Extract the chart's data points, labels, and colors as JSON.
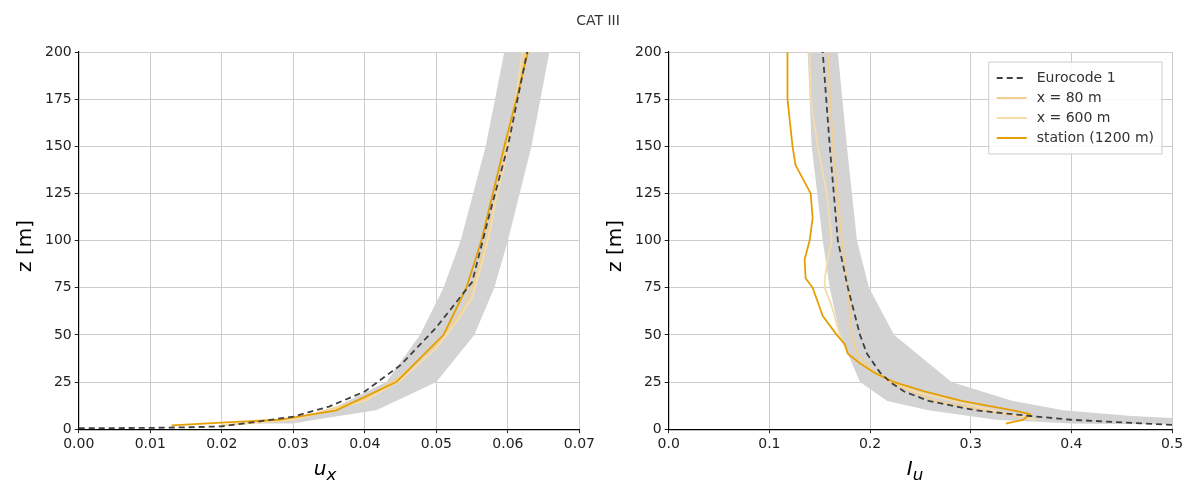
{
  "chart_data": [
    {
      "type": "line",
      "title": "CAT III",
      "xlabel": "u$_{x}$",
      "ylabel": "z [m]",
      "xlim": [
        0,
        0.07
      ],
      "ylim": [
        0,
        200
      ],
      "xticks": [
        {
          "value": 0,
          "label": "0.00"
        },
        {
          "value": 0.01,
          "label": "0.01"
        },
        {
          "value": 0.02,
          "label": "0.02"
        },
        {
          "value": 0.03,
          "label": "0.03"
        },
        {
          "value": 0.04,
          "label": "0.04"
        },
        {
          "value": 0.05,
          "label": "0.05"
        },
        {
          "value": 0.06,
          "label": "0.06"
        },
        {
          "value": 0.07,
          "label": "0.07"
        }
      ],
      "yticks": [
        0,
        25,
        50,
        75,
        100,
        125,
        150,
        175,
        200
      ],
      "grid": true,
      "legend": false,
      "marker": "none",
      "series": [
        {
          "type": "area",
          "color": "#d3d3d3",
          "x": [
            0.025,
            0.028,
            0.035,
            0.043,
            0.0477,
            0.051,
            0.0534,
            0.0569,
            0.0595,
            0.0658,
            0.0633,
            0.06,
            0.0581,
            0.0553,
            0.05,
            0.0416,
            0.033,
            0.03
          ],
          "values": [
            3,
            5,
            10,
            25,
            50,
            75,
            100,
            150,
            200,
            200,
            150,
            100,
            75,
            50,
            25,
            10,
            5,
            3
          ]
        },
        {
          "color": "#404040",
          "line_style": "dashed",
          "x": [
            0,
            0.01,
            0.015,
            0.02,
            0.025,
            0.03,
            0.035,
            0.04,
            0.045,
            0.05,
            0.055,
            0.0575,
            0.06,
            0.0627
          ],
          "values": [
            0.5,
            0.7,
            1,
            1.5,
            4,
            6.7,
            12,
            20,
            34,
            54,
            78,
            115,
            150,
            200
          ]
        },
        {
          "color": "#f2cf8f",
          "x": [
            0.02,
            0.03,
            0.04,
            0.045,
            0.05,
            0.054,
            0.0555,
            0.057,
            0.0585,
            0.0598,
            0.061,
            0.0625
          ],
          "values": [
            2,
            5,
            16,
            28,
            45,
            65,
            80,
            100,
            125,
            150,
            175,
            200
          ]
        },
        {
          "color": "#f5dca9",
          "x": [
            0.02,
            0.03,
            0.04,
            0.045,
            0.05,
            0.053,
            0.055,
            0.0565,
            0.0575,
            0.0585,
            0.0595,
            0.0605,
            0.0615,
            0.062
          ],
          "values": [
            2,
            5,
            15,
            26,
            43,
            58,
            70,
            90,
            105,
            125,
            140,
            160,
            185,
            200
          ]
        },
        {
          "color": "#e69f00",
          "x": [
            0.013,
            0.02,
            0.028,
            0.036,
            0.0444,
            0.051,
            0.0542,
            0.0563,
            0.0579,
            0.0595,
            0.0612,
            0.0628
          ],
          "values": [
            2,
            3.5,
            5,
            10,
            25,
            50,
            75,
            100,
            125,
            150,
            175,
            200
          ]
        }
      ]
    },
    {
      "type": "line",
      "xlabel": "I$_{u}$",
      "ylabel": "z [m]",
      "xlim": [
        0,
        0.5
      ],
      "ylim": [
        0,
        200
      ],
      "xticks": [
        {
          "value": 0,
          "label": "0.0"
        },
        {
          "value": 0.1,
          "label": "0.1"
        },
        {
          "value": 0.2,
          "label": "0.2"
        },
        {
          "value": 0.3,
          "label": "0.3"
        },
        {
          "value": 0.4,
          "label": "0.4"
        },
        {
          "value": 0.5,
          "label": "0.5"
        }
      ],
      "yticks": [
        0,
        25,
        50,
        75,
        100,
        125,
        150,
        175,
        200
      ],
      "grid": true,
      "legend": "top right",
      "marker": "none",
      "series": [
        {
          "type": "area",
          "color": "#d3d3d3",
          "x": [
            0.5,
            0.4,
            0.325,
            0.258,
            0.217,
            0.19,
            0.17,
            0.16,
            0.153,
            0.142,
            0.138,
            0.168,
            0.177,
            0.187,
            0.199,
            0.224,
            0.281,
            0.342,
            0.392,
            0.46,
            0.5
          ],
          "values": [
            2.5,
            3,
            5,
            10,
            15,
            25,
            50,
            75,
            100,
            150,
            200,
            200,
            150,
            100,
            75,
            50,
            25,
            15,
            10,
            7,
            6
          ]
        },
        {
          "name": "Eurocode 1",
          "color": "#404040",
          "line_style": "dashed",
          "x": [
            0.5,
            0.4,
            0.359,
            0.305,
            0.258,
            0.234,
            0.22,
            0.21,
            0.197,
            0.19,
            0.178,
            0.168,
            0.16,
            0.153
          ],
          "values": [
            2.3,
            5,
            7,
            10,
            15,
            20,
            25,
            30,
            40,
            50,
            75,
            100,
            150,
            200
          ]
        },
        {
          "name": "x = 80 m",
          "color": "#f2cf8f",
          "x": [
            0.365,
            0.315,
            0.264,
            0.22,
            0.204,
            0.187,
            0.182,
            0.178,
            0.172,
            0.163,
            0.158
          ],
          "values": [
            5,
            10,
            15,
            25,
            30,
            40,
            50,
            75,
            100,
            150,
            200
          ]
        },
        {
          "name": "x = 600 m",
          "color": "#f5dca9",
          "x": [
            0.365,
            0.322,
            0.244,
            0.204,
            0.178,
            0.17,
            0.162,
            0.155,
            0.155,
            0.158,
            0.162,
            0.157,
            0.148,
            0.141,
            0.14
          ],
          "values": [
            5,
            10,
            20,
            30,
            40,
            50,
            65,
            75,
            80,
            90,
            100,
            125,
            150,
            175,
            200
          ]
        },
        {
          "name": "station (1200 m)",
          "color": "#e69f00",
          "x": [
            0.335,
            0.352,
            0.359,
            0.342,
            0.291,
            0.254,
            0.224,
            0.204,
            0.19,
            0.178,
            0.175,
            0.167,
            0.153,
            0.143,
            0.136,
            0.135,
            0.14,
            0.143,
            0.141,
            0.126,
            0.123,
            0.118,
            0.118
          ],
          "values": [
            3,
            5,
            8,
            10,
            15,
            20,
            25,
            30,
            35,
            40,
            45,
            50,
            60,
            75,
            80,
            90,
            100,
            112,
            125,
            140,
            150,
            175,
            200
          ]
        }
      ]
    }
  ]
}
